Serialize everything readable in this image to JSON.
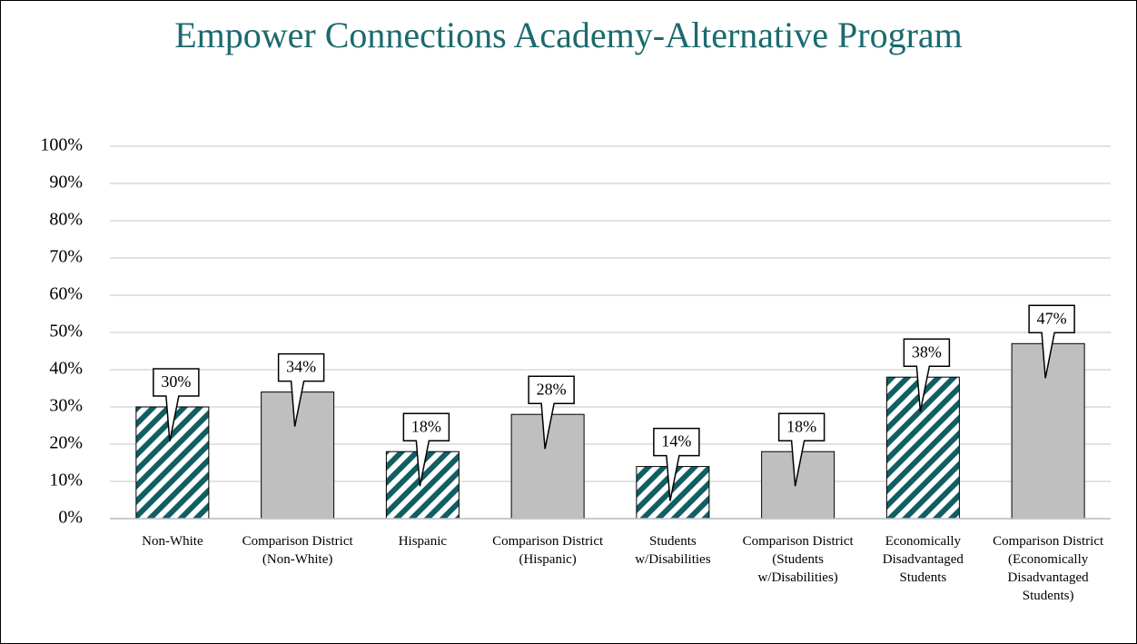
{
  "chart_data": {
    "type": "bar",
    "title": "Empower Connections Academy-Alternative Program",
    "categories": [
      "Non-White",
      "Comparison District (Non-White)",
      "Hispanic",
      "Comparison District (Hispanic)",
      "Students w/Disabilities",
      "Comparison District (Students w/Disabilities)",
      "Economically Disadvantaged Students",
      "Comparison District (Economically Disadvantaged Students)"
    ],
    "values": [
      30,
      34,
      18,
      28,
      14,
      18,
      38,
      47
    ],
    "value_labels": [
      "30%",
      "34%",
      "18%",
      "28%",
      "14%",
      "18%",
      "38%",
      "47%"
    ],
    "colors": [
      "#115e63",
      "#bfbfbf",
      "#115e63",
      "#bfbfbf",
      "#115e63",
      "#bfbfbf",
      "#115e63",
      "#bfbfbf"
    ],
    "hatched": [
      true,
      false,
      true,
      false,
      true,
      false,
      true,
      false
    ],
    "ylim": [
      0,
      100
    ],
    "yticks": [
      {
        "value": 0,
        "label": "0%"
      },
      {
        "value": 10,
        "label": "10%"
      },
      {
        "value": 20,
        "label": "20%"
      },
      {
        "value": 30,
        "label": "30%"
      },
      {
        "value": 40,
        "label": "40%"
      },
      {
        "value": 50,
        "label": "50%"
      },
      {
        "value": 60,
        "label": "60%"
      },
      {
        "value": 70,
        "label": "70%"
      },
      {
        "value": 80,
        "label": "80%"
      },
      {
        "value": 90,
        "label": "90%"
      },
      {
        "value": 100,
        "label": "100%"
      }
    ],
    "grid": true
  }
}
